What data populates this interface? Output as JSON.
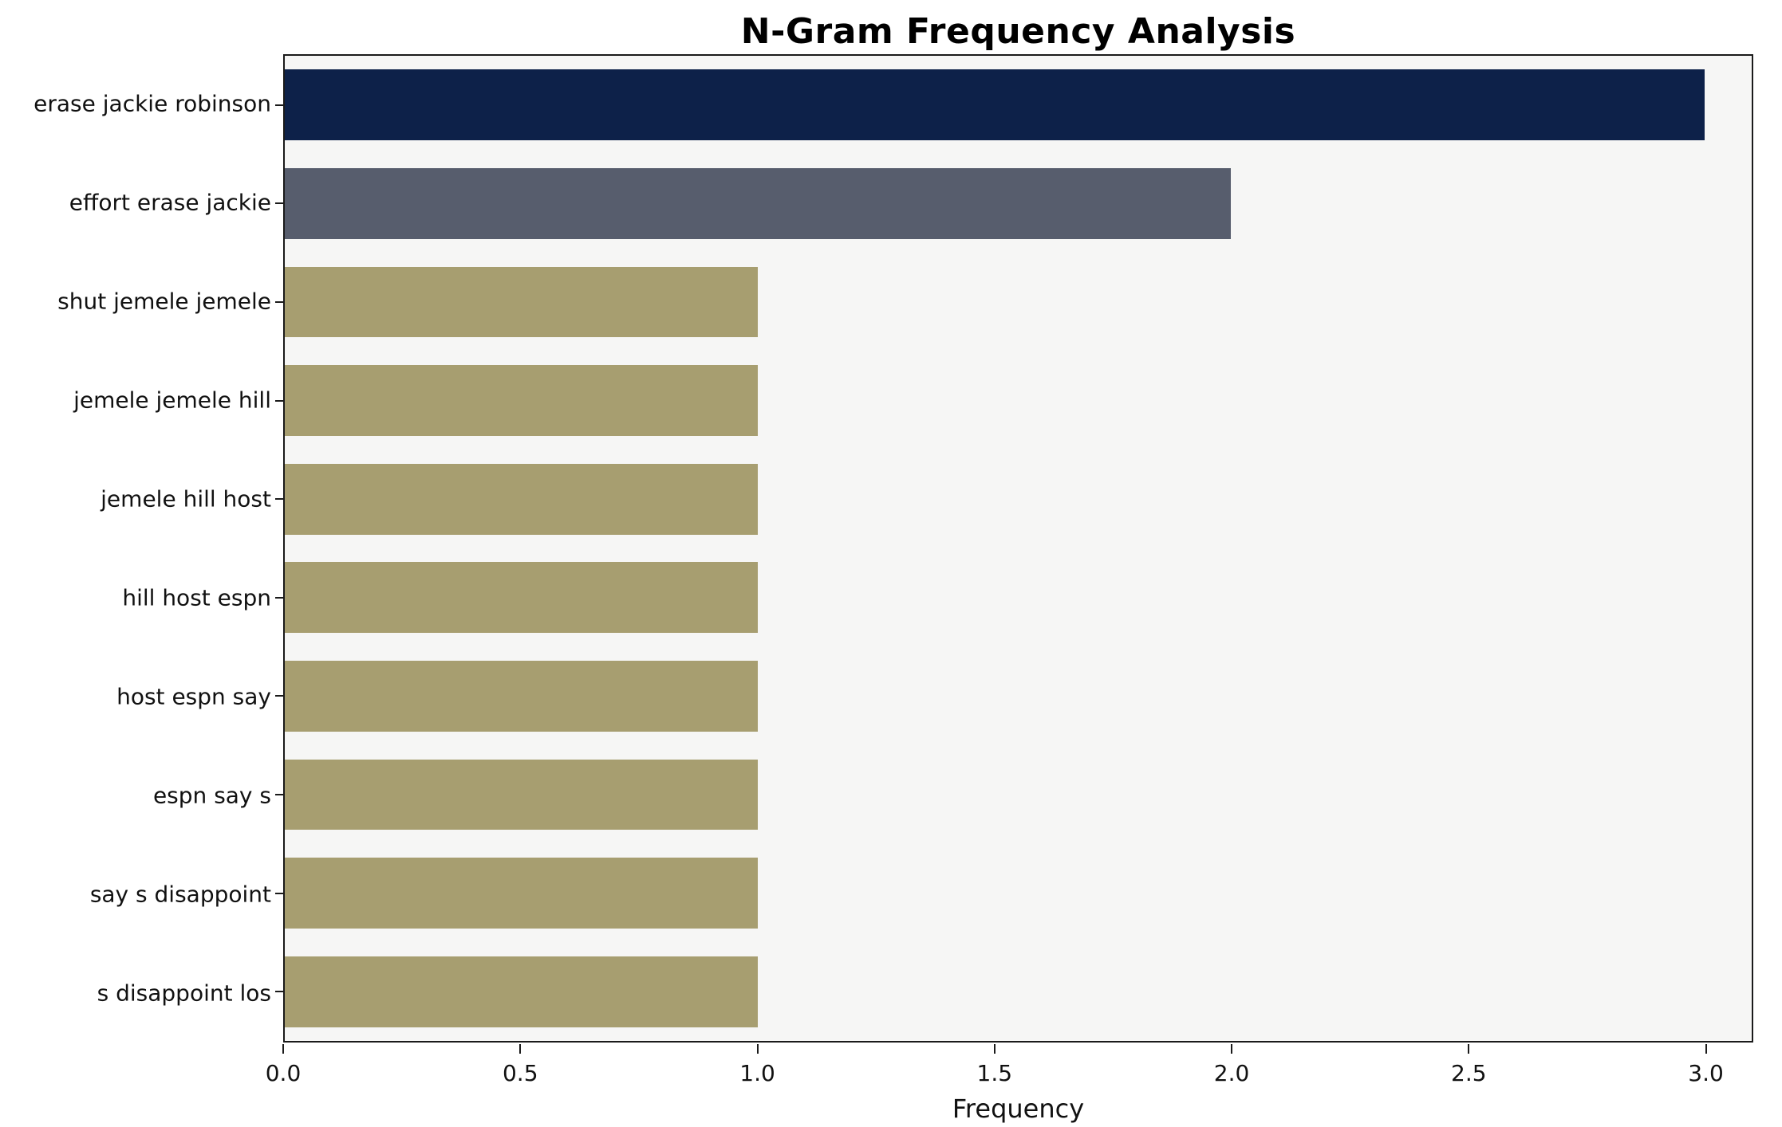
{
  "chart_data": {
    "type": "bar",
    "orientation": "horizontal",
    "title": "N-Gram Frequency Analysis",
    "xlabel": "Frequency",
    "ylabel": "",
    "categories": [
      "erase jackie robinson",
      "effort erase jackie",
      "shut jemele jemele",
      "jemele jemele hill",
      "jemele hill host",
      "hill host espn",
      "host espn say",
      "espn say s",
      "say s disappoint",
      "s disappoint los"
    ],
    "values": [
      3,
      2,
      1,
      1,
      1,
      1,
      1,
      1,
      1,
      1
    ],
    "bar_colors": [
      "#0d2149",
      "#575d6d",
      "#a79e70",
      "#a79e70",
      "#a79e70",
      "#a79e70",
      "#a79e70",
      "#a79e70",
      "#a79e70",
      "#a79e70"
    ],
    "xlim": [
      0,
      3.1
    ],
    "xticks": [
      0.0,
      0.5,
      1.0,
      1.5,
      2.0,
      2.5,
      3.0
    ],
    "xtick_labels": [
      "0.0",
      "0.5",
      "1.0",
      "1.5",
      "2.0",
      "2.5",
      "3.0"
    ],
    "grid": false,
    "legend": null,
    "plot_bg": "#f6f6f5",
    "page_bg": "#ffffff"
  }
}
